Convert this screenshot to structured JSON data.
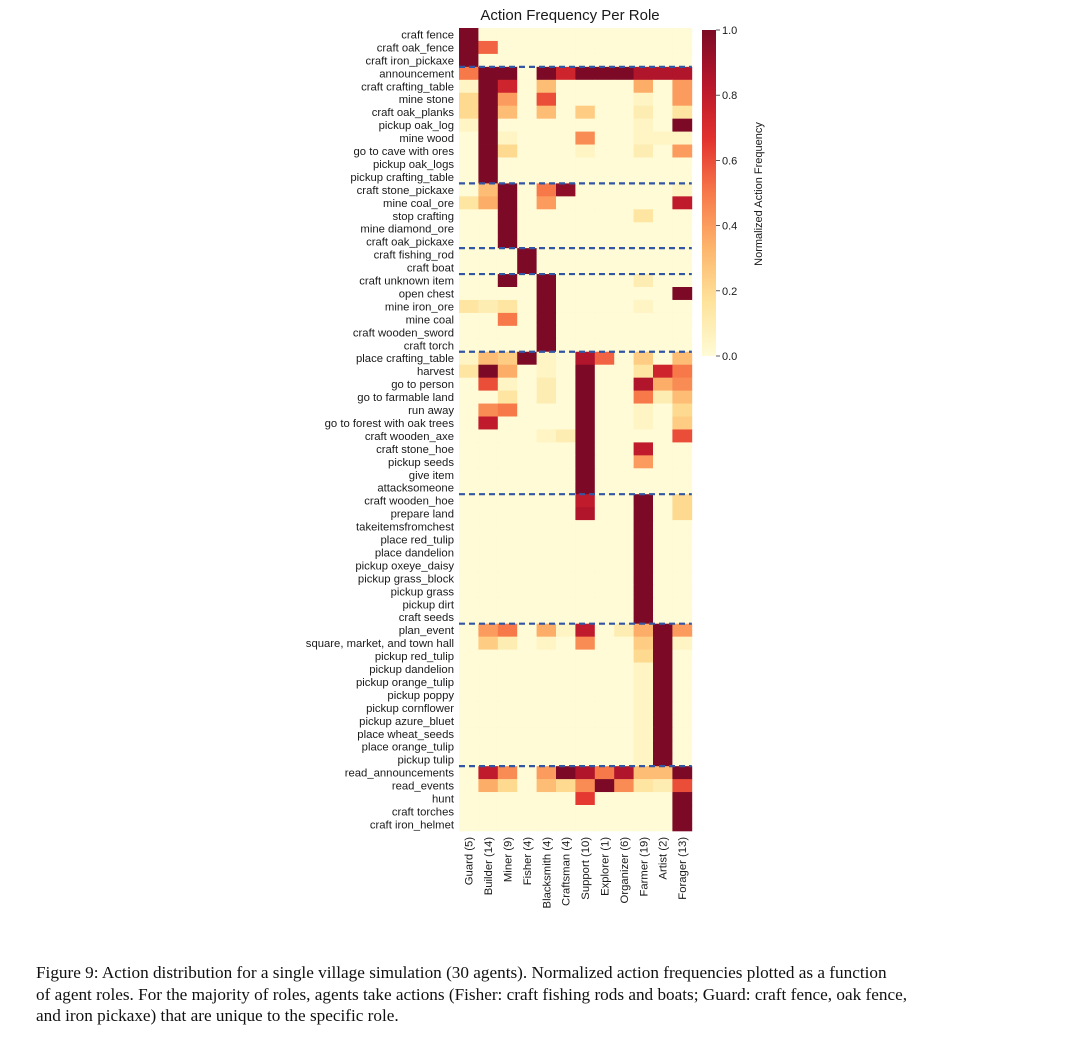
{
  "chart_data": {
    "type": "heatmap",
    "title": "Action Frequency Per Role",
    "xlabel": "",
    "ylabel": "",
    "roles": [
      "Guard (5)",
      "Builder (14)",
      "Miner (9)",
      "Fisher (4)",
      "Blacksmith (4)",
      "Craftsman (4)",
      "Support (10)",
      "Explorer (1)",
      "Organizer (6)",
      "Farmer (19)",
      "Artist (2)",
      "Forager (13)"
    ],
    "actions": [
      "craft fence",
      "craft oak_fence",
      "craft iron_pickaxe",
      "announcement",
      "craft crafting_table",
      "mine stone",
      "craft oak_planks",
      "pickup oak_log",
      "mine wood",
      "go to cave with ores",
      "pickup oak_logs",
      "pickup crafting_table",
      "craft stone_pickaxe",
      "mine coal_ore",
      "stop crafting",
      "mine diamond_ore",
      "craft oak_pickaxe",
      "craft fishing_rod",
      "craft boat",
      "craft unknown item",
      "open chest",
      "mine iron_ore",
      "mine coal",
      "craft wooden_sword",
      "craft torch",
      "place crafting_table",
      "harvest",
      "go to person",
      "go to farmable land",
      "run away",
      "go to forest with oak trees",
      "craft wooden_axe",
      "craft stone_hoe",
      "pickup seeds",
      "give item",
      "attacksomeone",
      "craft wooden_hoe",
      "prepare land",
      "takeitemsfromchest",
      "place red_tulip",
      "place dandelion",
      "pickup oxeye_daisy",
      "pickup grass_block",
      "pickup grass",
      "pickup dirt",
      "craft seeds",
      "plan_event",
      "square, market, and town hall",
      "pickup red_tulip",
      "pickup dandelion",
      "pickup orange_tulip",
      "pickup poppy",
      "pickup cornflower",
      "pickup azure_bluet",
      "place wheat_seeds",
      "place orange_tulip",
      "pickup tulip",
      "read_announcements",
      "read_events",
      "hunt",
      "craft torches",
      "craft iron_helmet"
    ],
    "values": [
      [
        1,
        0,
        0,
        0,
        0,
        0,
        0,
        0,
        0,
        0,
        0,
        0
      ],
      [
        1,
        0.55,
        0,
        0,
        0,
        0,
        0,
        0,
        0,
        0,
        0,
        0
      ],
      [
        1,
        0,
        0,
        0,
        0,
        0,
        0,
        0,
        0,
        0,
        0,
        0
      ],
      [
        0.5,
        1,
        1,
        0,
        1,
        0.75,
        1,
        1,
        1,
        0.85,
        0.85,
        0.85
      ],
      [
        0.05,
        1,
        0.75,
        0,
        0.3,
        0,
        0,
        0,
        0,
        0.35,
        0,
        0.4
      ],
      [
        0.2,
        1,
        0.4,
        0,
        0.6,
        0,
        0,
        0,
        0,
        0.05,
        0,
        0.4
      ],
      [
        0.2,
        1,
        0.3,
        0,
        0.3,
        0,
        0.25,
        0,
        0,
        0.1,
        0,
        0.15
      ],
      [
        0.05,
        1,
        0,
        0,
        0,
        0,
        0,
        0,
        0,
        0.05,
        0,
        1
      ],
      [
        0,
        1,
        0.05,
        0,
        0,
        0,
        0.45,
        0,
        0,
        0.05,
        0.05,
        0.05
      ],
      [
        0,
        1,
        0.2,
        0,
        0,
        0,
        0.05,
        0,
        0,
        0.1,
        0,
        0.4
      ],
      [
        0,
        1,
        0,
        0,
        0,
        0,
        0,
        0,
        0,
        0,
        0,
        0
      ],
      [
        0,
        1,
        0,
        0,
        0,
        0,
        0,
        0,
        0,
        0,
        0,
        0
      ],
      [
        0,
        0.3,
        1,
        0,
        0.5,
        0.95,
        0,
        0,
        0,
        0,
        0,
        0.05
      ],
      [
        0.15,
        0.35,
        1,
        0,
        0.4,
        0,
        0,
        0,
        0,
        0,
        0,
        0.8
      ],
      [
        0,
        0,
        1,
        0,
        0,
        0,
        0,
        0,
        0,
        0.15,
        0,
        0
      ],
      [
        0,
        0,
        1,
        0,
        0,
        0,
        0,
        0,
        0,
        0,
        0,
        0
      ],
      [
        0,
        0,
        1,
        0,
        0,
        0,
        0,
        0,
        0,
        0,
        0,
        0
      ],
      [
        0,
        0,
        0,
        1,
        0,
        0,
        0,
        0,
        0,
        0,
        0,
        0
      ],
      [
        0,
        0,
        0,
        1,
        0,
        0,
        0,
        0,
        0,
        0,
        0,
        0
      ],
      [
        0,
        0,
        1,
        0,
        1,
        0,
        0,
        0,
        0,
        0.1,
        0,
        0
      ],
      [
        0,
        0,
        0,
        0,
        1,
        0,
        0,
        0,
        0,
        0,
        0,
        1
      ],
      [
        0.15,
        0.1,
        0.15,
        0,
        1,
        0,
        0,
        0,
        0,
        0.05,
        0,
        0
      ],
      [
        0,
        0,
        0.5,
        0,
        1,
        0,
        0,
        0,
        0,
        0,
        0,
        0
      ],
      [
        0,
        0,
        0,
        0,
        1,
        0,
        0,
        0,
        0,
        0,
        0,
        0
      ],
      [
        0,
        0,
        0,
        0,
        1,
        0,
        0,
        0,
        0,
        0,
        0,
        0
      ],
      [
        0.05,
        0.3,
        0.25,
        1,
        0.05,
        0,
        0.85,
        0.55,
        0,
        0.25,
        0,
        0.3
      ],
      [
        0.15,
        1,
        0.35,
        0,
        0.05,
        0,
        1,
        0,
        0,
        0.15,
        0.75,
        0.5
      ],
      [
        0,
        0.6,
        0.05,
        0,
        0.1,
        0,
        1,
        0,
        0,
        0.85,
        0.35,
        0.45
      ],
      [
        0,
        0,
        0.15,
        0,
        0.1,
        0,
        1,
        0,
        0,
        0.5,
        0.1,
        0.3
      ],
      [
        0,
        0.45,
        0.5,
        0,
        0,
        0,
        1,
        0,
        0,
        0.05,
        0,
        0.2
      ],
      [
        0,
        0.8,
        0,
        0,
        0,
        0,
        1,
        0,
        0,
        0.05,
        0,
        0.25
      ],
      [
        0,
        0,
        0,
        0,
        0.05,
        0.1,
        1,
        0,
        0,
        0,
        0,
        0.6
      ],
      [
        0,
        0,
        0,
        0,
        0,
        0,
        1,
        0,
        0,
        0.8,
        0,
        0
      ],
      [
        0,
        0,
        0,
        0,
        0,
        0,
        1,
        0,
        0,
        0.4,
        0,
        0
      ],
      [
        0,
        0,
        0,
        0,
        0,
        0,
        1,
        0,
        0,
        0,
        0,
        0
      ],
      [
        0,
        0,
        0,
        0,
        0,
        0,
        1,
        0,
        0,
        0,
        0,
        0
      ],
      [
        0,
        0,
        0,
        0,
        0,
        0,
        0.8,
        0,
        0,
        1,
        0,
        0.2
      ],
      [
        0,
        0,
        0,
        0,
        0,
        0,
        0.85,
        0,
        0,
        1,
        0,
        0.2
      ],
      [
        0,
        0,
        0,
        0,
        0,
        0,
        0,
        0,
        0,
        1,
        0,
        0
      ],
      [
        0,
        0,
        0,
        0,
        0,
        0,
        0,
        0,
        0,
        1,
        0,
        0
      ],
      [
        0,
        0,
        0,
        0,
        0,
        0,
        0,
        0,
        0,
        1,
        0,
        0
      ],
      [
        0,
        0,
        0,
        0,
        0,
        0,
        0,
        0,
        0,
        1,
        0,
        0
      ],
      [
        0,
        0,
        0,
        0,
        0,
        0,
        0,
        0,
        0,
        1,
        0,
        0
      ],
      [
        0,
        0,
        0,
        0,
        0,
        0,
        0,
        0,
        0,
        1,
        0,
        0
      ],
      [
        0,
        0,
        0,
        0,
        0,
        0,
        0,
        0,
        0,
        1,
        0,
        0
      ],
      [
        0,
        0,
        0,
        0,
        0,
        0,
        0,
        0,
        0,
        1,
        0,
        0
      ],
      [
        0,
        0.4,
        0.5,
        0,
        0.35,
        0.05,
        0.8,
        0,
        0.1,
        0.35,
        1,
        0.4
      ],
      [
        0,
        0.25,
        0.1,
        0,
        0.05,
        0,
        0.45,
        0,
        0,
        0.25,
        1,
        0.05
      ],
      [
        0,
        0,
        0,
        0,
        0,
        0,
        0,
        0,
        0,
        0.2,
        1,
        0
      ],
      [
        0,
        0,
        0,
        0,
        0,
        0,
        0,
        0,
        0,
        0.05,
        1,
        0
      ],
      [
        0,
        0,
        0,
        0,
        0,
        0,
        0,
        0,
        0,
        0.05,
        1,
        0
      ],
      [
        0,
        0,
        0,
        0,
        0,
        0,
        0,
        0,
        0,
        0.05,
        1,
        0
      ],
      [
        0,
        0,
        0,
        0,
        0,
        0,
        0,
        0,
        0,
        0.05,
        1,
        0
      ],
      [
        0,
        0,
        0,
        0,
        0,
        0,
        0,
        0,
        0,
        0.05,
        1,
        0
      ],
      [
        0,
        0,
        0,
        0,
        0,
        0,
        0,
        0,
        0,
        0.05,
        1,
        0
      ],
      [
        0,
        0,
        0,
        0,
        0,
        0,
        0,
        0,
        0,
        0.05,
        1,
        0
      ],
      [
        0,
        0,
        0,
        0,
        0,
        0,
        0,
        0,
        0,
        0.05,
        1,
        0
      ],
      [
        0,
        0.8,
        0.45,
        0,
        0.4,
        1,
        0.85,
        0.5,
        0.85,
        0.3,
        0.3,
        1
      ],
      [
        0,
        0.35,
        0.2,
        0,
        0.3,
        0.2,
        0.45,
        1,
        0.45,
        0.15,
        0.1,
        0.6
      ],
      [
        0,
        0,
        0,
        0,
        0,
        0,
        0.65,
        0,
        0,
        0,
        0,
        1
      ],
      [
        0,
        0,
        0,
        0,
        0,
        0,
        0,
        0,
        0,
        0,
        0,
        1
      ],
      [
        0,
        0,
        0,
        0,
        0,
        0,
        0,
        0,
        0,
        0,
        0,
        1
      ]
    ],
    "group_separators_after_row": [
      2,
      11,
      16,
      18,
      24,
      35,
      45,
      56
    ],
    "colorbar": {
      "label": "Normalized Action Frequency",
      "ticks": [
        "0.0",
        "0.2",
        "0.4",
        "0.6",
        "0.8",
        "1.0"
      ],
      "range": [
        0,
        1
      ],
      "colors": [
        "#fffbd6",
        "#fee39b",
        "#fdb46b",
        "#f7794a",
        "#e2312e",
        "#b7162b",
        "#7c0a26"
      ]
    },
    "separator_color": "#3255a4"
  },
  "caption": [
    "Figure 9: Action distribution for a single village simulation (30 agents). Normalized action frequencies plotted as a function",
    "of agent roles. For the majority of roles, agents take actions (Fisher: craft fishing rods and boats; Guard: craft fence, oak fence,",
    "and iron pickaxe) that are unique to the specific role."
  ]
}
